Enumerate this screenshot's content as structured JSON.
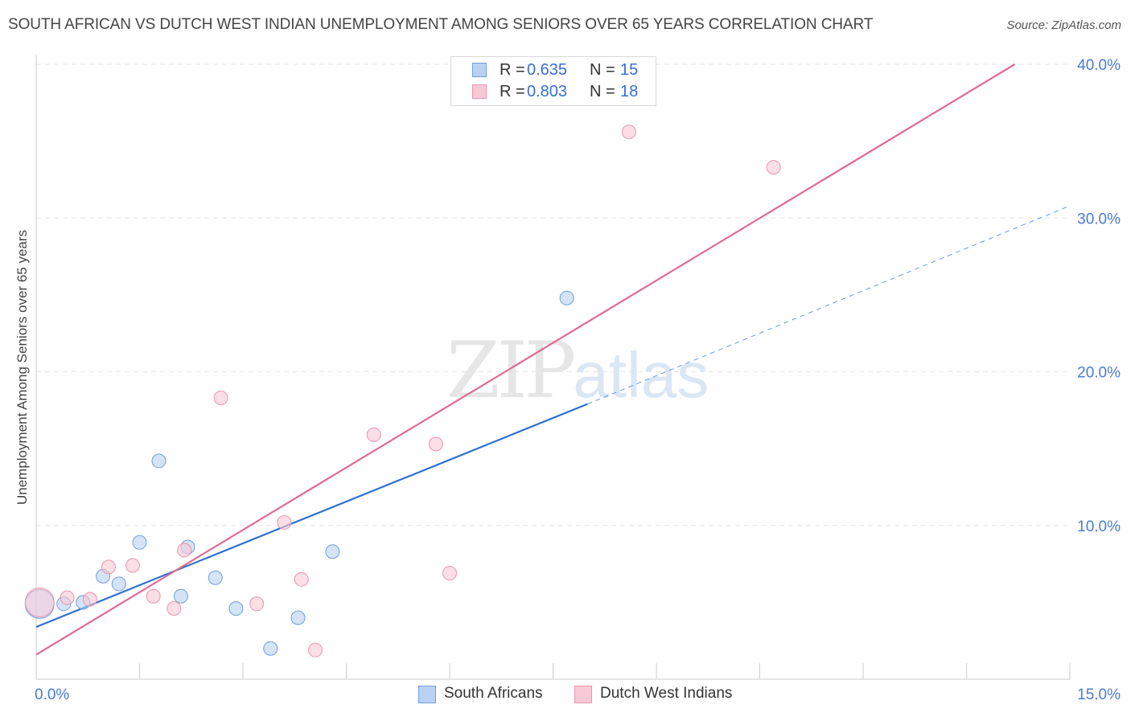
{
  "header": {
    "title": "SOUTH AFRICAN VS DUTCH WEST INDIAN UNEMPLOYMENT AMONG SENIORS OVER 65 YEARS CORRELATION CHART",
    "source": "Source: ZipAtlas.com"
  },
  "watermark": {
    "zip": "ZIP",
    "atlas": "atlas"
  },
  "legend": {
    "rows": [
      {
        "r_label": "R =",
        "r_value": "0.635",
        "n_label": "N =",
        "n_value": "15",
        "color": "#a9c7ef",
        "border": "#6f9fdc"
      },
      {
        "r_label": "R =",
        "r_value": "0.803",
        "n_label": "N =",
        "n_value": "18",
        "color": "#f8c4d3",
        "border": "#e88aa6"
      }
    ]
  },
  "bottom_legend": {
    "series1": "South Africans",
    "series2": "Dutch West Indians"
  },
  "colors": {
    "blue_fill": "#b9d1f2",
    "blue_stroke": "#6f9fdc",
    "blue_line": "#2f6fd1",
    "pink_fill": "#f8c8d6",
    "pink_stroke": "#ea94ad",
    "pink_line": "#e06a92",
    "grid": "#e4e4e4",
    "axis_text": "#4a7bd0"
  },
  "chart_data": {
    "type": "scatter",
    "title": "SOUTH AFRICAN VS DUTCH WEST INDIAN UNEMPLOYMENT AMONG SENIORS OVER 65 YEARS CORRELATION CHART",
    "xlabel": "",
    "ylabel": "Unemployment Among Seniors over 65 years",
    "xlim": [
      0,
      15
    ],
    "ylim": [
      0,
      40
    ],
    "x_tick_labels": [
      {
        "value": 0,
        "label": "0.0%"
      },
      {
        "value": 15,
        "label": "15.0%"
      }
    ],
    "y_tick_labels": [
      {
        "value": 10,
        "label": "10.0%"
      },
      {
        "value": 20,
        "label": "20.0%"
      },
      {
        "value": 30,
        "label": "30.0%"
      },
      {
        "value": 40,
        "label": "40.0%"
      }
    ],
    "grid": true,
    "series": [
      {
        "name": "South Africans",
        "r": 0.635,
        "n": 15,
        "points": [
          {
            "x": 0.05,
            "y": 4.9,
            "big": true
          },
          {
            "x": 0.4,
            "y": 4.9
          },
          {
            "x": 0.68,
            "y": 5.0
          },
          {
            "x": 0.97,
            "y": 6.7
          },
          {
            "x": 1.2,
            "y": 6.2
          },
          {
            "x": 1.5,
            "y": 8.9
          },
          {
            "x": 1.78,
            "y": 14.2
          },
          {
            "x": 2.1,
            "y": 5.4
          },
          {
            "x": 2.2,
            "y": 8.6
          },
          {
            "x": 2.6,
            "y": 6.6
          },
          {
            "x": 2.9,
            "y": 4.6
          },
          {
            "x": 3.4,
            "y": 2.0
          },
          {
            "x": 3.8,
            "y": 4.0
          },
          {
            "x": 4.3,
            "y": 8.3
          },
          {
            "x": 7.7,
            "y": 24.8
          }
        ],
        "trend": {
          "x0": 0,
          "y0": 3.4,
          "x1": 8.0,
          "y1": 17.9,
          "dash_to_x": 15,
          "dash_to_y": 30.8
        }
      },
      {
        "name": "Dutch West Indians",
        "r": 0.803,
        "n": 18,
        "points": [
          {
            "x": 0.05,
            "y": 5.0,
            "big": true
          },
          {
            "x": 0.45,
            "y": 5.3
          },
          {
            "x": 0.78,
            "y": 5.2
          },
          {
            "x": 1.05,
            "y": 7.3
          },
          {
            "x": 1.4,
            "y": 7.4
          },
          {
            "x": 1.7,
            "y": 5.4
          },
          {
            "x": 2.0,
            "y": 4.6
          },
          {
            "x": 2.15,
            "y": 8.4
          },
          {
            "x": 2.68,
            "y": 18.3
          },
          {
            "x": 3.2,
            "y": 4.9
          },
          {
            "x": 3.6,
            "y": 10.2
          },
          {
            "x": 3.85,
            "y": 6.5
          },
          {
            "x": 4.05,
            "y": 1.9
          },
          {
            "x": 4.9,
            "y": 15.9
          },
          {
            "x": 5.8,
            "y": 15.3
          },
          {
            "x": 6.0,
            "y": 6.9
          },
          {
            "x": 8.6,
            "y": 35.6
          },
          {
            "x": 10.7,
            "y": 33.3
          }
        ],
        "trend": {
          "x0": 0,
          "y0": 1.6,
          "x1": 14.2,
          "y1": 40.0
        }
      }
    ]
  }
}
